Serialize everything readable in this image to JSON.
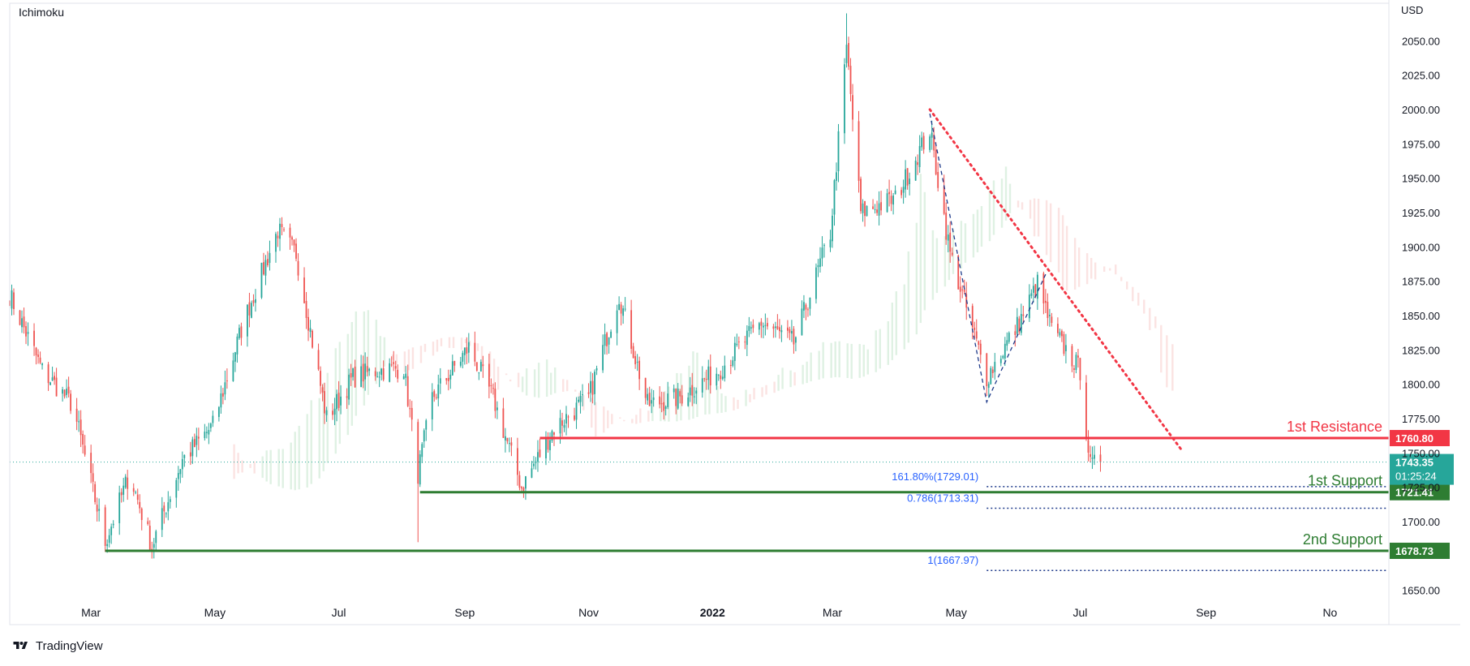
{
  "indicator_label": "Ichimoku",
  "currency_label": "USD",
  "brand": {
    "name": "TradingView"
  },
  "colors": {
    "up": "#26a69a",
    "down": "#ef5350",
    "resistance": "#f23645",
    "support": "#2e7d32",
    "fib": "#2962ff",
    "last_price_bg": "#26a69a",
    "cloud_bull": "#dcefe0",
    "cloud_bear": "#fbe0df"
  },
  "chart_data": {
    "type": "candlestick",
    "symbol_currency": "USD",
    "x_tick_labels": [
      "Mar",
      "May",
      "Jul",
      "Sep",
      "Nov",
      "2022",
      "Mar",
      "May",
      "Jul",
      "Sep",
      "No"
    ],
    "x_range": [
      "2021-01-20",
      "2022-11-30"
    ],
    "y_range": [
      1625,
      2075
    ],
    "y_ticks": [
      1650,
      1700,
      1725,
      1750,
      1775,
      1800,
      1825,
      1850,
      1875,
      1900,
      1925,
      1950,
      1975,
      2000,
      2025,
      2050
    ],
    "y_tick_labels": [
      "1650.00",
      "1700.00",
      "1725.00",
      "1750.00",
      "1775.00",
      "1800.00",
      "1825.00",
      "1850.00",
      "1875.00",
      "1900.00",
      "1925.00",
      "1950.00",
      "1975.00",
      "2000.00",
      "2025.00",
      "2050.00"
    ],
    "price_path": [
      [
        "2021-01-20",
        1865
      ],
      [
        "2021-02-05",
        1810
      ],
      [
        "2021-02-20",
        1785
      ],
      [
        "2021-03-08",
        1685
      ],
      [
        "2021-03-20",
        1735
      ],
      [
        "2021-03-31",
        1682
      ],
      [
        "2021-04-15",
        1745
      ],
      [
        "2021-04-30",
        1770
      ],
      [
        "2021-05-15",
        1845
      ],
      [
        "2021-06-01",
        1912
      ],
      [
        "2021-06-10",
        1895
      ],
      [
        "2021-06-25",
        1775
      ],
      [
        "2021-07-08",
        1805
      ],
      [
        "2021-07-20",
        1810
      ],
      [
        "2021-08-02",
        1812
      ],
      [
        "2021-08-09",
        1735
      ],
      [
        "2021-08-16",
        1790
      ],
      [
        "2021-09-03",
        1827
      ],
      [
        "2021-09-15",
        1790
      ],
      [
        "2021-09-29",
        1725
      ],
      [
        "2021-10-15",
        1768
      ],
      [
        "2021-11-01",
        1790
      ],
      [
        "2021-11-16",
        1865
      ],
      [
        "2021-11-30",
        1785
      ],
      [
        "2021-12-15",
        1790
      ],
      [
        "2022-01-04",
        1810
      ],
      [
        "2022-01-25",
        1845
      ],
      [
        "2022-02-10",
        1830
      ],
      [
        "2022-02-28",
        1910
      ],
      [
        "2022-03-08",
        2045
      ],
      [
        "2022-03-15",
        1925
      ],
      [
        "2022-04-01",
        1935
      ],
      [
        "2022-04-18",
        1985
      ],
      [
        "2022-04-28",
        1895
      ],
      [
        "2022-05-16",
        1805
      ],
      [
        "2022-06-01",
        1845
      ],
      [
        "2022-06-10",
        1873
      ],
      [
        "2022-06-17",
        1840
      ],
      [
        "2022-07-01",
        1810
      ],
      [
        "2022-07-06",
        1740
      ],
      [
        "2022-07-11",
        1743.35
      ]
    ],
    "extremes": [
      {
        "date": "2022-03-08",
        "high": 2070
      },
      {
        "date": "2021-08-09",
        "low": 1685
      },
      {
        "date": "2021-03-08",
        "low": 1678
      }
    ],
    "levels": [
      {
        "name": "resistance",
        "label": "1st Resistance",
        "value": 1760.8,
        "value_label": "1760.80",
        "from": "2021-10-08"
      },
      {
        "name": "support-1",
        "label": "1st Support",
        "value": 1721.41,
        "value_label": "1721.41",
        "from": "2021-08-10"
      },
      {
        "name": "support-2",
        "label": "2nd Support",
        "value": 1678.73,
        "value_label": "1678.73",
        "from": "2021-03-08"
      }
    ],
    "fib_levels": [
      {
        "label": "161.80%(1729.01)",
        "value": 1729.01
      },
      {
        "label": "0.786(1713.31)",
        "value": 1713.31
      },
      {
        "label": "1(1667.97)",
        "value": 1667.97
      }
    ],
    "fib_start": "2022-05-16",
    "trendline": {
      "from": [
        "2022-04-18",
        2000
      ],
      "to": [
        "2022-08-20",
        1752
      ]
    },
    "abc_pattern": [
      [
        "2022-04-18",
        1997
      ],
      [
        "2022-05-16",
        1787
      ],
      [
        "2022-06-14",
        1880
      ]
    ],
    "last_price": {
      "value": 1743.35,
      "label": "1743.35",
      "countdown": "01:25:24"
    }
  }
}
